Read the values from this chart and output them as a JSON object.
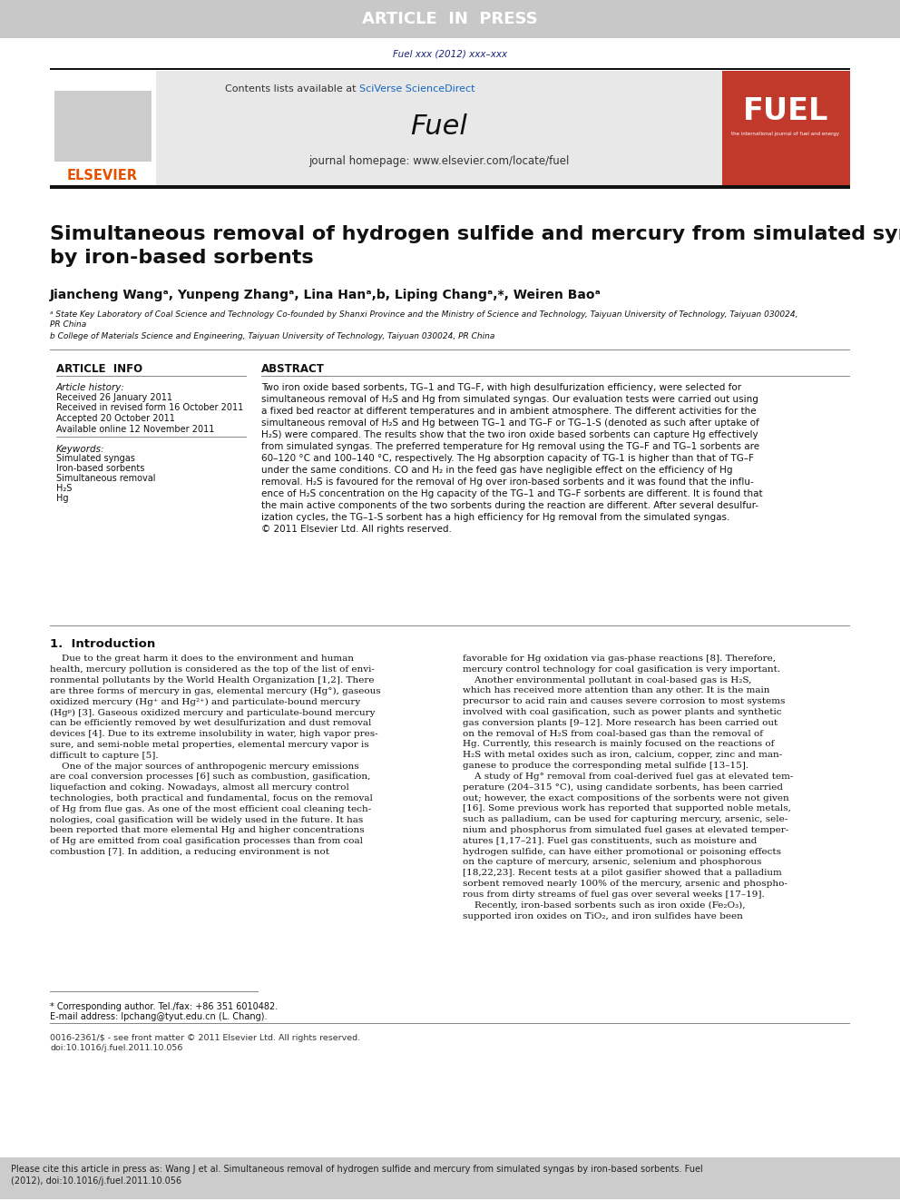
{
  "article_in_press_text": "ARTICLE  IN  PRESS",
  "article_in_press_bg": "#c8c8c8",
  "article_in_press_fg": "#ffffff",
  "journal_ref": "Fuel xxx (2012) xxx–xxx",
  "journal_ref_color": "#1a237e",
  "contents_text": "Contents lists available at ",
  "sciverse_text": "SciVerse ScienceDirect",
  "sciverse_color": "#1565c0",
  "journal_name": "Fuel",
  "journal_homepage": "journal homepage: www.elsevier.com/locate/fuel",
  "header_bg": "#e8e8e8",
  "elsevier_color": "#e65100",
  "fuel_cover_bg": "#c0392b",
  "paper_title": "Simultaneous removal of hydrogen sulfide and mercury from simulated syngas\nby iron-based sorbents",
  "authors_raw": "Jiancheng Wangᵃ, Yunpeng Zhangᵃ, Lina Hanᵃ,b, Liping Changᵃ,*, Weiren Baoᵃ",
  "affil_a": "ᵃ State Key Laboratory of Coal Science and Technology Co-founded by Shanxi Province and the Ministry of Science and Technology, Taiyuan University of Technology, Taiyuan 030024,\nPR China",
  "affil_b": "b College of Materials Science and Engineering, Taiyuan University of Technology, Taiyuan 030024, PR China",
  "article_info_title": "ARTICLE  INFO",
  "article_history_title": "Article history:",
  "received": "Received 26 January 2011",
  "revised": "Received in revised form 16 October 2011",
  "accepted": "Accepted 20 October 2011",
  "available": "Available online 12 November 2011",
  "keywords_title": "Keywords:",
  "keywords": [
    "Simulated syngas",
    "Iron-based sorbents",
    "Simultaneous removal",
    "H₂S",
    "Hg"
  ],
  "abstract_title": "ABSTRACT",
  "abstract_text": "Two iron oxide based sorbents, TG–1 and TG–F, with high desulfurization efficiency, were selected for\nsimultaneous removal of H₂S and Hg from simulated syngas. Our evaluation tests were carried out using\na fixed bed reactor at different temperatures and in ambient atmosphere. The different activities for the\nsimultaneous removal of H₂S and Hg between TG–1 and TG–F or TG–1-S (denoted as such after uptake of\nH₂S) were compared. The results show that the two iron oxide based sorbents can capture Hg effectively\nfrom simulated syngas. The preferred temperature for Hg removal using the TG–F and TG–1 sorbents are\n60–120 °C and 100–140 °C, respectively. The Hg absorption capacity of TG-1 is higher than that of TG–F\nunder the same conditions. CO and H₂ in the feed gas have negligible effect on the efficiency of Hg\nremoval. H₂S is favoured for the removal of Hg over iron-based sorbents and it was found that the influ-\nence of H₂S concentration on the Hg capacity of the TG–1 and TG–F sorbents are different. It is found that\nthe main active components of the two sorbents during the reaction are different. After several desulfur-\nization cycles, the TG–1-S sorbent has a high efficiency for Hg removal from the simulated syngas.\n© 2011 Elsevier Ltd. All rights reserved.",
  "section1_title": "1.  Introduction",
  "intro_text_col1": "    Due to the great harm it does to the environment and human\nhealth, mercury pollution is considered as the top of the list of envi-\nronmental pollutants by the World Health Organization [1,2]. There\nare three forms of mercury in gas, elemental mercury (Hg°), gaseous\noxidized mercury (Hg⁺ and Hg²⁺) and particulate-bound mercury\n(Hgᵖ) [3]. Gaseous oxidized mercury and particulate-bound mercury\ncan be efficiently removed by wet desulfurization and dust removal\ndevices [4]. Due to its extreme insolubility in water, high vapor pres-\nsure, and semi-noble metal properties, elemental mercury vapor is\ndifficult to capture [5].\n    One of the major sources of anthropogenic mercury emissions\nare coal conversion processes [6] such as combustion, gasification,\nliquefaction and coking. Nowadays, almost all mercury control\ntechnologies, both practical and fundamental, focus on the removal\nof Hg from flue gas. As one of the most efficient coal cleaning tech-\nnologies, coal gasification will be widely used in the future. It has\nbeen reported that more elemental Hg and higher concentrations\nof Hg are emitted from coal gasification processes than from coal\ncombustion [7]. In addition, a reducing environment is not",
  "intro_text_col2": "favorable for Hg oxidation via gas-phase reactions [8]. Therefore,\nmercury control technology for coal gasification is very important.\n    Another environmental pollutant in coal-based gas is H₂S,\nwhich has received more attention than any other. It is the main\nprecursor to acid rain and causes severe corrosion to most systems\ninvolved with coal gasification, such as power plants and synthetic\ngas conversion plants [9–12]. More research has been carried out\non the removal of H₂S from coal-based gas than the removal of\nHg. Currently, this research is mainly focused on the reactions of\nH₂S with metal oxides such as iron, calcium, copper, zinc and man-\nganese to produce the corresponding metal sulfide [13–15].\n    A study of Hg° removal from coal-derived fuel gas at elevated tem-\nperature (204–315 °C), using candidate sorbents, has been carried\nout; however, the exact compositions of the sorbents were not given\n[16]. Some previous work has reported that supported noble metals,\nsuch as palladium, can be used for capturing mercury, arsenic, sele-\nnium and phosphorus from simulated fuel gases at elevated temper-\natures [1,17–21]. Fuel gas constituents, such as moisture and\nhydrogen sulfide, can have either promotional or poisoning effects\non the capture of mercury, arsenic, selenium and phosphorous\n[18,22,23]. Recent tests at a pilot gasifier showed that a palladium\nsorbent removed nearly 100% of the mercury, arsenic and phospho-\nrous from dirty streams of fuel gas over several weeks [17–19].\n    Recently, iron-based sorbents such as iron oxide (Fe₂O₃),\nsupported iron oxides on TiO₂, and iron sulfides have been",
  "footnote_corresp": "* Corresponding author. Tel./fax: +86 351 6010482.",
  "footnote_email": "E-mail address: lpchang@tyut.edu.cn (L. Chang).",
  "issn_text": "0016-2361/$ - see front matter © 2011 Elsevier Ltd. All rights reserved.",
  "doi_text": "doi:10.1016/j.fuel.2011.10.056",
  "cite_text": "Please cite this article in press as: Wang J et al. Simultaneous removal of hydrogen sulfide and mercury from simulated syngas by iron-based sorbents. Fuel\n(2012), doi:10.1016/j.fuel.2011.10.056",
  "cite_bg": "#cccccc",
  "page_bg": "#ffffff",
  "line_color": "#888888",
  "dark_line": "#111111"
}
